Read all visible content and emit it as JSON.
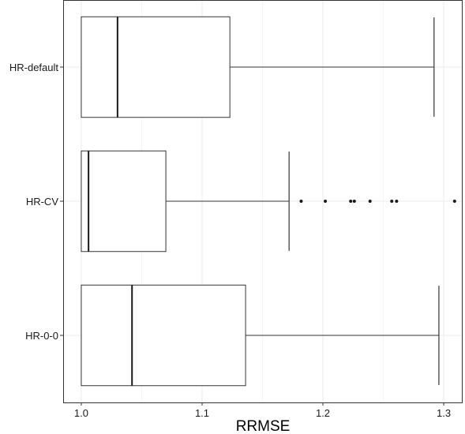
{
  "chart_data": {
    "type": "boxplot",
    "orientation": "horizontal",
    "title": "",
    "xlabel": "RRMSE",
    "ylabel": "",
    "xlim": [
      0.985,
      1.315
    ],
    "x_ticks": [
      {
        "value": 1.0,
        "label": "1.0"
      },
      {
        "value": 1.1,
        "label": "1.1"
      },
      {
        "value": 1.2,
        "label": "1.2"
      },
      {
        "value": 1.3,
        "label": "1.3"
      }
    ],
    "grid": true,
    "legend": "none",
    "categories": [
      "HR-default",
      "HR-CV",
      "HR-0-0"
    ],
    "boxes": [
      {
        "category": "HR-default",
        "whisker_low": 1.0,
        "q1": 1.0,
        "median": 1.03,
        "q3": 1.123,
        "whisker_high": 1.292,
        "outliers": []
      },
      {
        "category": "HR-CV",
        "whisker_low": 1.0,
        "q1": 1.0,
        "median": 1.006,
        "q3": 1.07,
        "whisker_high": 1.172,
        "outliers": [
          1.182,
          1.202,
          1.223,
          1.226,
          1.239,
          1.257,
          1.261,
          1.309
        ]
      },
      {
        "category": "HR-0-0",
        "whisker_low": 1.0,
        "q1": 1.0,
        "median": 1.042,
        "q3": 1.136,
        "whisker_high": 1.296,
        "outliers": []
      }
    ],
    "colors": {
      "box_fill": "#ffffff",
      "box_stroke": "#333333",
      "median": "#1a1a1a",
      "whisker": "#333333",
      "outlier": "#1a1a1a",
      "grid": "#ebebeb",
      "panel_border": "#333333",
      "tick_text": "#1a1a1a"
    }
  }
}
